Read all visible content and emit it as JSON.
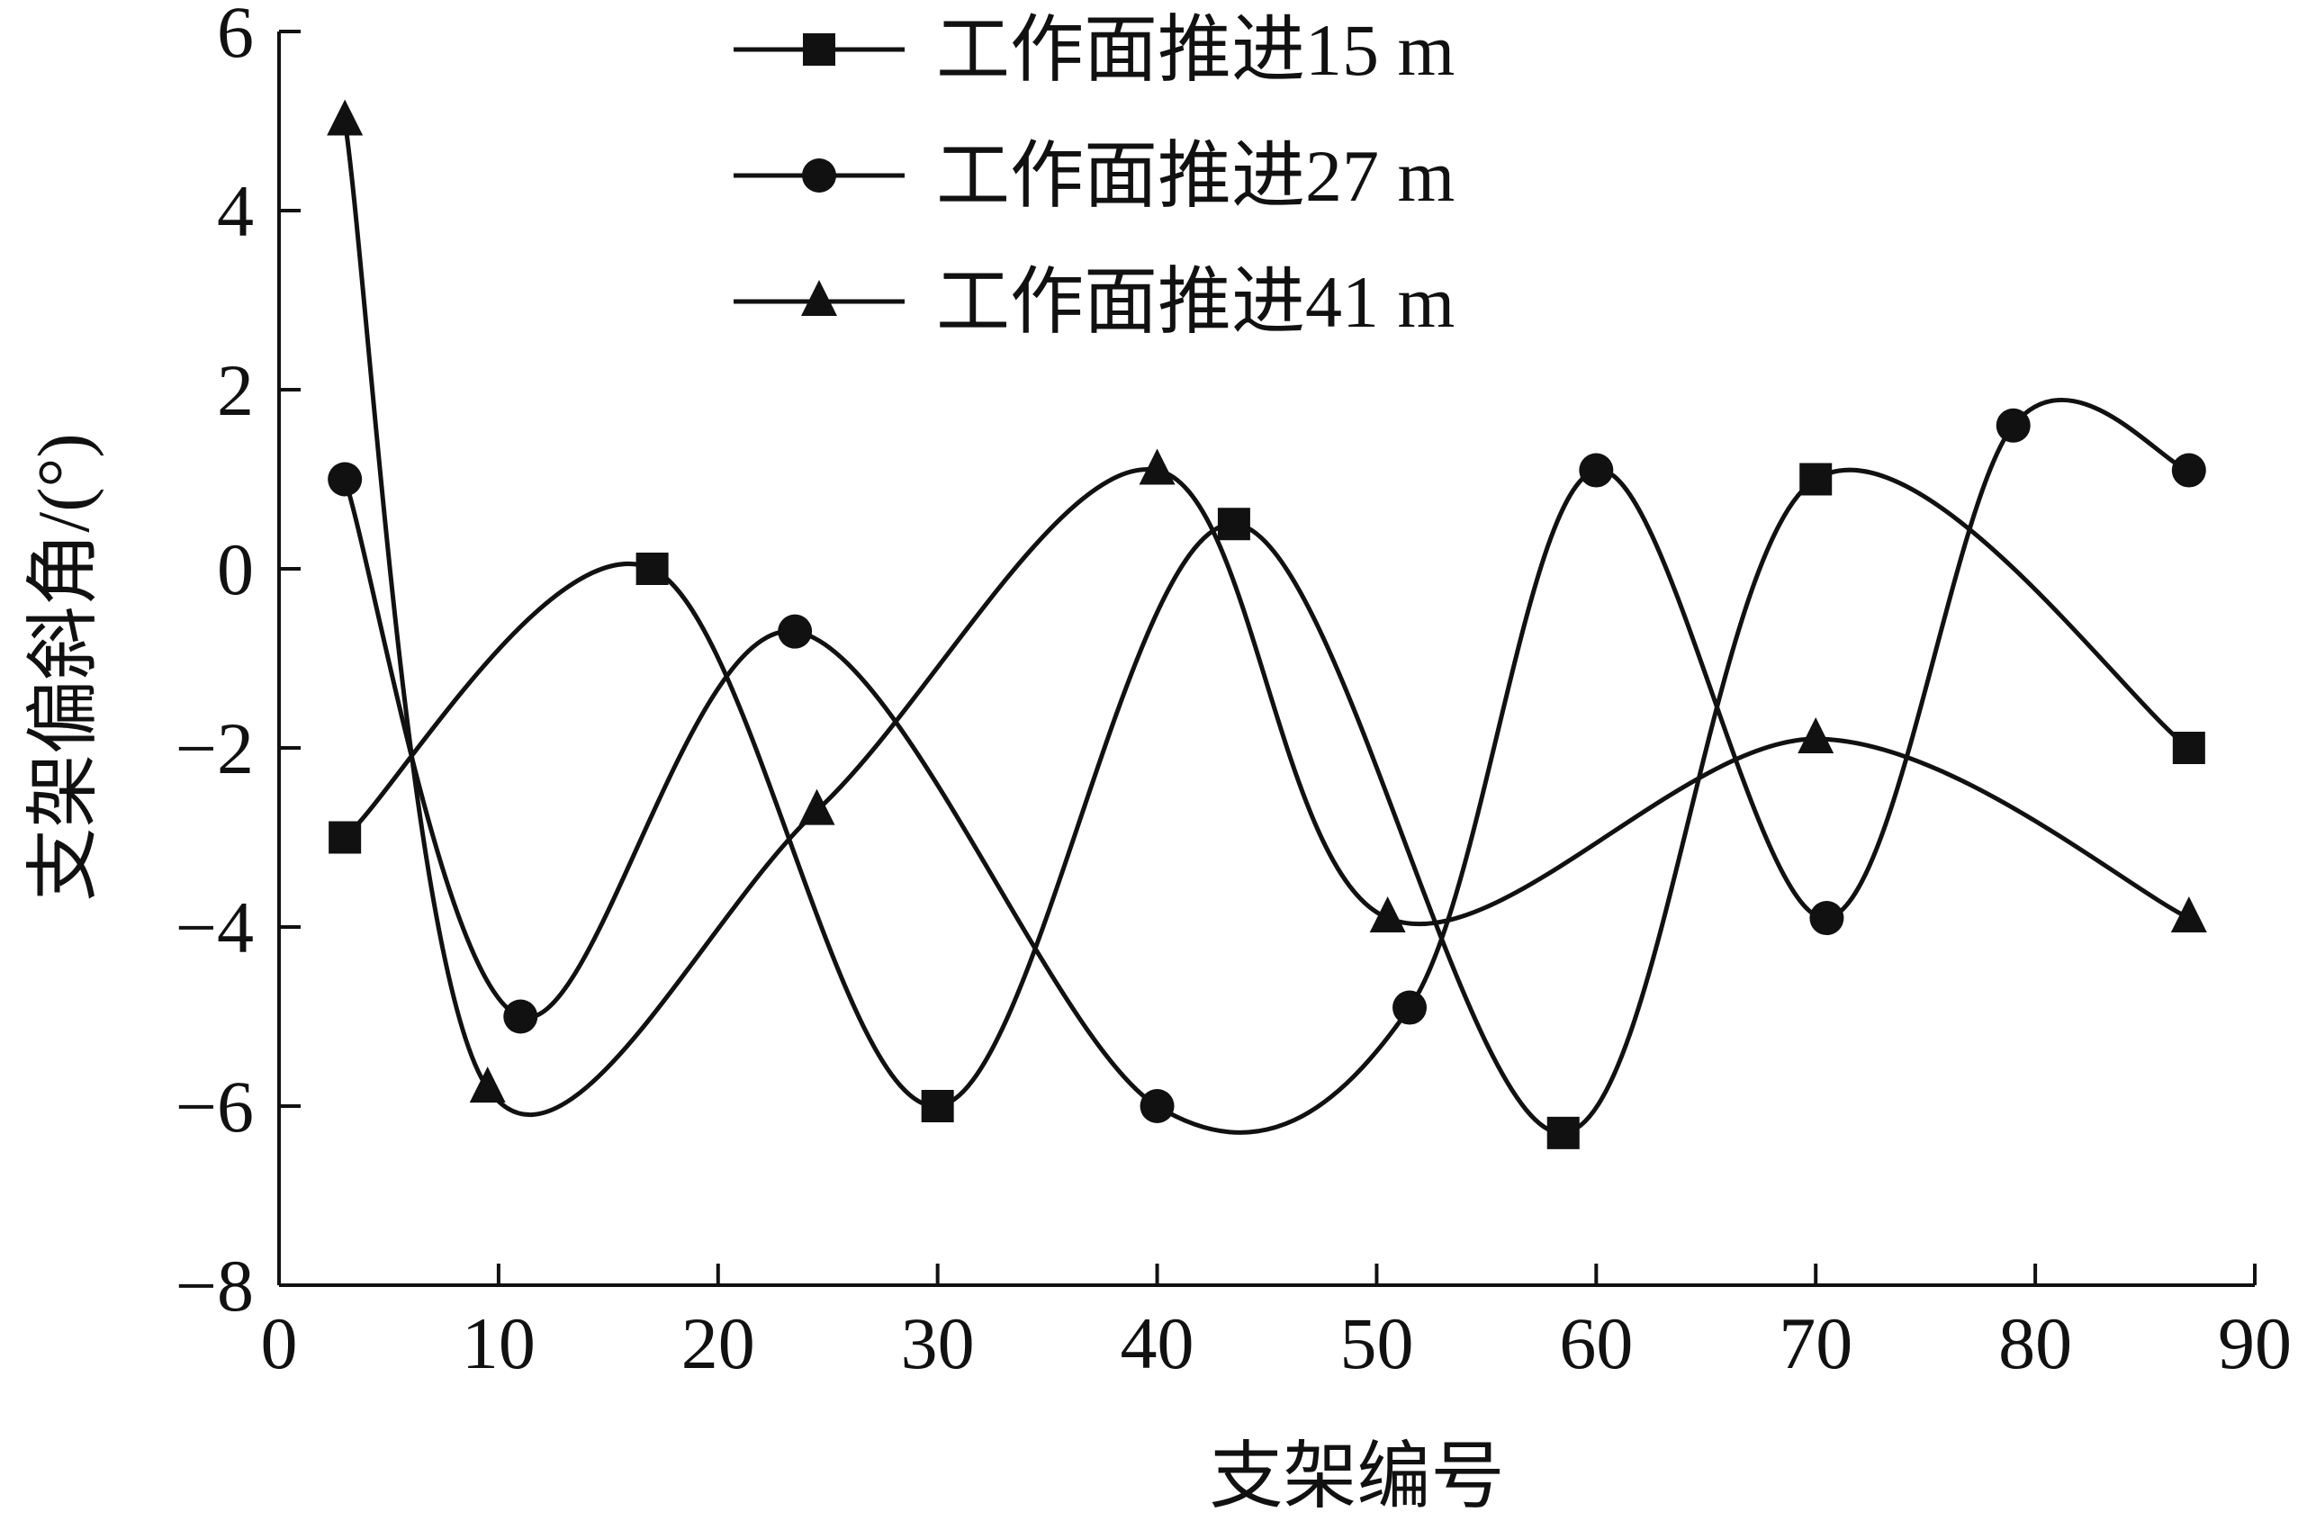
{
  "chart_data": {
    "type": "line",
    "xlabel": "支架编号",
    "ylabel": "支架偏斜角/(°)",
    "xlim": [
      0,
      90
    ],
    "ylim": [
      -8,
      6
    ],
    "xticks": [
      0,
      10,
      20,
      30,
      40,
      50,
      60,
      70,
      80,
      90
    ],
    "yticks": [
      6,
      4,
      2,
      0,
      -2,
      -4,
      -6,
      -8
    ],
    "ytick_labels": [
      "6",
      "4",
      "2",
      "0",
      "−2",
      "−4",
      "−6",
      "−8"
    ],
    "grid": false,
    "legend_position": "top",
    "smooth": true,
    "series": [
      {
        "name": "工作面推进15 m",
        "marker": "square",
        "x": [
          3,
          17,
          30,
          43.5,
          58.5,
          70,
          87
        ],
        "y": [
          -3,
          0,
          -6,
          0.5,
          -6.3,
          1,
          -2
        ]
      },
      {
        "name": "工作面推进27 m",
        "marker": "circle",
        "x": [
          3,
          11,
          23.5,
          40,
          51.5,
          60,
          70.5,
          79,
          87
        ],
        "y": [
          1,
          -5,
          -0.7,
          -6,
          -4.9,
          1.1,
          -3.9,
          1.6,
          1.1
        ]
      },
      {
        "name": "工作面推进41 m",
        "marker": "triangle",
        "x": [
          3,
          9.5,
          24.5,
          40,
          50.5,
          70,
          87
        ],
        "y": [
          5,
          -5.8,
          -2.7,
          1.1,
          -3.9,
          -1.9,
          -3.9
        ]
      }
    ]
  }
}
